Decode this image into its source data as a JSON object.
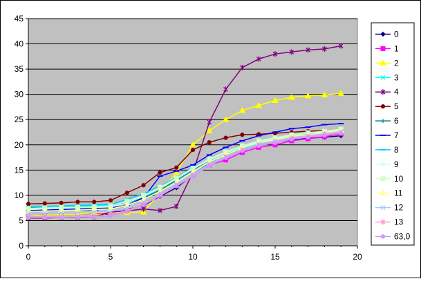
{
  "chart_data": {
    "type": "line",
    "title": "",
    "xlabel": "",
    "ylabel": "",
    "xlim": [
      0,
      20
    ],
    "ylim": [
      0,
      45
    ],
    "x_ticks": [
      0,
      5,
      10,
      15,
      20
    ],
    "y_ticks": [
      0,
      5,
      10,
      15,
      20,
      25,
      30,
      35,
      40,
      45
    ],
    "x_tick_labels": [
      "0",
      "5",
      "10",
      "15",
      "20"
    ],
    "y_tick_labels": [
      "0",
      "5",
      "10",
      "15",
      "20",
      "25",
      "30",
      "35",
      "40",
      "45"
    ],
    "grid": "horizontal",
    "plot_background": "#c0c0c0",
    "legend_position": "right",
    "x": [
      0,
      1,
      2,
      3,
      4,
      5,
      6,
      7,
      8,
      9,
      10,
      11,
      12,
      13,
      14,
      15,
      16,
      17,
      18,
      19
    ],
    "series": [
      {
        "name": "0",
        "color": "#000080",
        "marker": "diamond",
        "values": [
          7.0,
          7.0,
          7.1,
          7.1,
          7.1,
          6.0,
          7.2,
          8.0,
          9.8,
          11.5,
          14.0,
          16.5,
          17.5,
          19.0,
          20.0,
          20.5,
          21.0,
          21.3,
          21.5,
          21.8
        ]
      },
      {
        "name": "1",
        "color": "#ff00ff",
        "marker": "square",
        "values": [
          6.0,
          6.1,
          6.2,
          6.3,
          6.4,
          6.5,
          7.0,
          8.2,
          10.0,
          12.0,
          14.0,
          16.0,
          17.0,
          18.5,
          19.5,
          20.0,
          20.8,
          21.2,
          21.6,
          22.2
        ]
      },
      {
        "name": "2",
        "color": "#ffff00",
        "marker": "triangle",
        "values": [
          6.0,
          6.1,
          6.2,
          6.3,
          6.5,
          6.7,
          6.6,
          6.7,
          10.5,
          14.5,
          20.0,
          22.8,
          25.0,
          26.8,
          27.8,
          28.8,
          29.4,
          29.7,
          29.9,
          30.2
        ]
      },
      {
        "name": "3",
        "color": "#00ffff",
        "marker": "x",
        "values": [
          7.5,
          7.6,
          7.7,
          7.8,
          7.9,
          8.0,
          8.8,
          9.8,
          11.0,
          12.8,
          14.5,
          16.5,
          17.8,
          19.2,
          20.3,
          21.0,
          21.8,
          22.3,
          22.6,
          23.0
        ]
      },
      {
        "name": "4",
        "color": "#800080",
        "marker": "star",
        "values": [
          5.5,
          5.5,
          5.6,
          5.6,
          5.7,
          6.7,
          6.9,
          7.3,
          7.0,
          7.8,
          14.5,
          24.5,
          31.0,
          35.3,
          37.0,
          38.0,
          38.4,
          38.8,
          39.0,
          39.6
        ]
      },
      {
        "name": "5",
        "color": "#800000",
        "marker": "circle",
        "values": [
          8.3,
          8.4,
          8.5,
          8.7,
          8.7,
          9.0,
          10.5,
          12.0,
          14.5,
          15.5,
          19.0,
          20.5,
          21.4,
          22.0,
          22.1,
          22.3,
          22.5,
          22.7,
          22.8,
          22.5
        ]
      },
      {
        "name": "6",
        "color": "#008080",
        "marker": "plus",
        "values": [
          7.5,
          7.5,
          7.6,
          7.6,
          7.7,
          7.9,
          8.5,
          9.5,
          11.0,
          13.0,
          15.0,
          17.0,
          18.5,
          19.5,
          20.5,
          21.0,
          21.8,
          22.0,
          22.3,
          22.5
        ]
      },
      {
        "name": "7",
        "color": "#0000ff",
        "marker": "dash",
        "values": [
          7.0,
          7.1,
          7.2,
          7.3,
          7.4,
          7.5,
          8.0,
          9.5,
          13.8,
          14.8,
          16.0,
          18.0,
          19.5,
          20.8,
          21.8,
          22.5,
          23.2,
          23.5,
          24.0,
          24.2
        ]
      },
      {
        "name": "8",
        "color": "#00ccff",
        "marker": "dash",
        "values": [
          7.8,
          7.8,
          7.9,
          8.0,
          8.1,
          8.2,
          9.2,
          10.3,
          11.8,
          13.5,
          15.5,
          17.2,
          18.5,
          19.8,
          20.8,
          21.3,
          22.0,
          22.4,
          22.6,
          23.0
        ]
      },
      {
        "name": "9",
        "color": "#ccffff",
        "marker": "circle",
        "values": [
          7.2,
          7.3,
          7.4,
          7.5,
          7.6,
          7.7,
          8.5,
          9.8,
          11.5,
          13.2,
          15.2,
          17.0,
          18.4,
          19.6,
          20.6,
          21.2,
          21.9,
          22.3,
          22.6,
          22.9
        ]
      },
      {
        "name": "10",
        "color": "#ccffcc",
        "marker": "square",
        "values": [
          7.4,
          7.5,
          7.6,
          7.6,
          7.7,
          7.9,
          8.8,
          10.0,
          11.6,
          13.4,
          15.4,
          17.2,
          18.6,
          19.8,
          20.8,
          21.4,
          22.0,
          22.4,
          22.7,
          23.1
        ]
      },
      {
        "name": "11",
        "color": "#ffff99",
        "marker": "triangle",
        "values": [
          6.8,
          6.9,
          7.0,
          7.1,
          7.2,
          7.3,
          8.0,
          9.2,
          10.8,
          12.6,
          14.6,
          16.6,
          18.0,
          19.4,
          20.4,
          21.0,
          21.7,
          22.0,
          22.4,
          22.8
        ]
      },
      {
        "name": "12",
        "color": "#99ccff",
        "marker": "x",
        "values": [
          6.4,
          6.5,
          6.5,
          6.6,
          6.7,
          6.8,
          7.5,
          8.7,
          10.4,
          12.2,
          14.2,
          16.2,
          17.7,
          19.0,
          20.1,
          20.8,
          21.4,
          21.8,
          22.2,
          22.6
        ]
      },
      {
        "name": "13",
        "color": "#ff99cc",
        "marker": "star",
        "values": [
          5.8,
          5.8,
          5.7,
          5.7,
          5.8,
          6.1,
          7.0,
          8.3,
          10.1,
          12.0,
          14.0,
          16.1,
          17.6,
          19.0,
          20.0,
          20.6,
          21.3,
          21.7,
          22.1,
          22.5
        ]
      },
      {
        "name": "63,0",
        "color": "#cc99ff",
        "marker": "circle",
        "values": [
          5.6,
          5.6,
          5.6,
          5.7,
          5.7,
          5.9,
          6.8,
          8.1,
          9.9,
          11.8,
          13.8,
          15.9,
          17.4,
          18.8,
          19.8,
          20.4,
          21.1,
          21.5,
          21.9,
          22.3
        ]
      }
    ]
  }
}
